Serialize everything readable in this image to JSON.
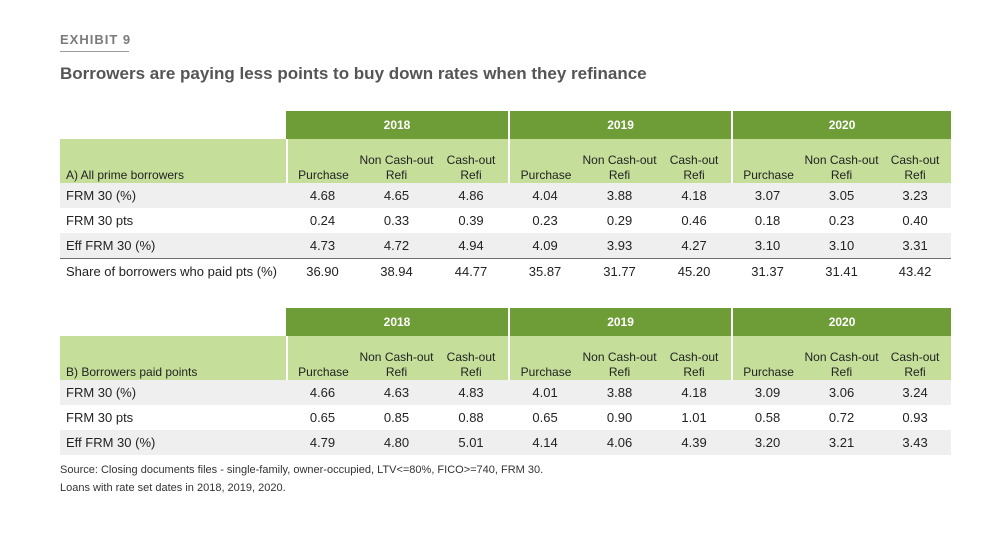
{
  "header": {
    "exhibit_label": "EXHIBIT 9",
    "title": "Borrowers are paying less points to buy down rates when they refinance"
  },
  "years": [
    "2018",
    "2019",
    "2020"
  ],
  "columns": {
    "purchase": "Purchase",
    "non_cash_out_line1": "Non Cash-out",
    "non_cash_out_line2": "Refi",
    "cash_out_line1": "Cash-out",
    "cash_out_line2": "Refi"
  },
  "table_a": {
    "section_label": "A) All prime borrowers",
    "rows": [
      {
        "label": "FRM 30 (%)",
        "values": [
          "4.68",
          "4.65",
          "4.86",
          "4.04",
          "3.88",
          "4.18",
          "3.07",
          "3.05",
          "3.23"
        ]
      },
      {
        "label": "FRM 30 pts",
        "values": [
          "0.24",
          "0.33",
          "0.39",
          "0.23",
          "0.29",
          "0.46",
          "0.18",
          "0.23",
          "0.40"
        ]
      },
      {
        "label": "Eff FRM 30 (%)",
        "values": [
          "4.73",
          "4.72",
          "4.94",
          "4.09",
          "3.93",
          "4.27",
          "3.10",
          "3.10",
          "3.31"
        ]
      },
      {
        "label": "Share of borrowers who paid pts (%)",
        "values": [
          "36.90",
          "38.94",
          "44.77",
          "35.87",
          "31.77",
          "45.20",
          "31.37",
          "31.41",
          "43.42"
        ]
      }
    ]
  },
  "table_b": {
    "section_label": "B) Borrowers paid points",
    "rows": [
      {
        "label": "FRM 30 (%)",
        "values": [
          "4.66",
          "4.63",
          "4.83",
          "4.01",
          "3.88",
          "4.18",
          "3.09",
          "3.06",
          "3.24"
        ]
      },
      {
        "label": "FRM 30 pts",
        "values": [
          "0.65",
          "0.85",
          "0.88",
          "0.65",
          "0.90",
          "1.01",
          "0.58",
          "0.72",
          "0.93"
        ]
      },
      {
        "label": "Eff FRM 30 (%)",
        "values": [
          "4.79",
          "4.80",
          "5.01",
          "4.14",
          "4.06",
          "4.39",
          "3.20",
          "3.21",
          "3.43"
        ]
      }
    ]
  },
  "footer": {
    "source_line1": "Source: Closing documents files - single-family, owner-occupied, LTV<=80%, FICO>=740, FRM 30.",
    "source_line2": "Loans with rate set dates in 2018, 2019, 2020."
  },
  "colors": {
    "year_header_bg": "#6e9d38",
    "sub_header_bg": "#c5df9a",
    "shaded_row_bg": "#efefef"
  }
}
